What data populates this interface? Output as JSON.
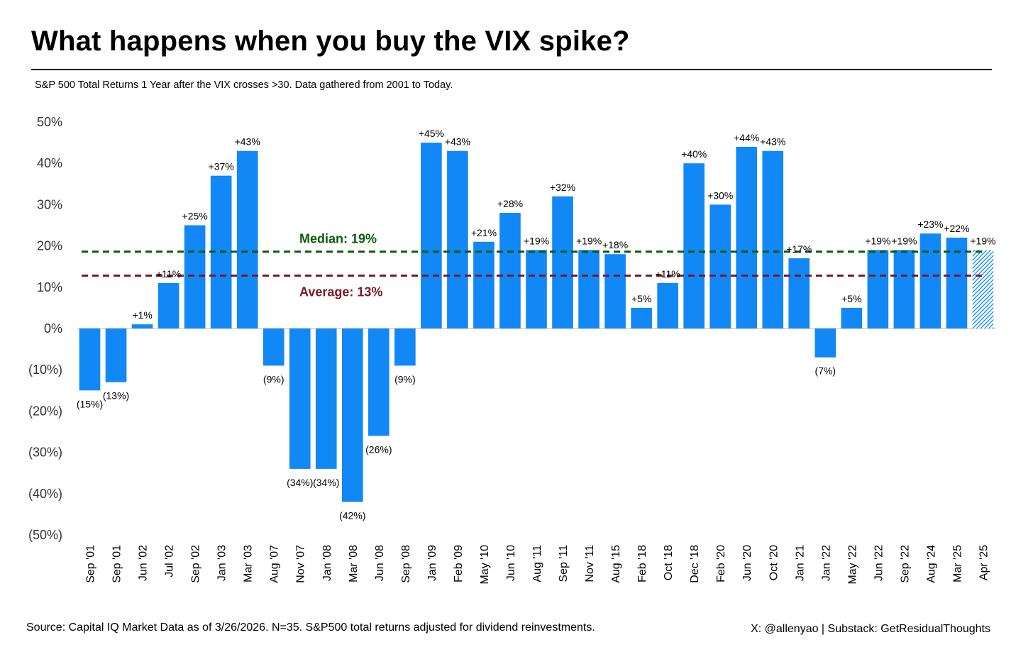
{
  "title": "What happens when you buy the VIX spike?",
  "subtitle": "S&P 500 Total Returns 1 Year after the VIX crosses >30. Data gathered from 2001 to Today.",
  "footer": {
    "source": "Source: Capital IQ Market Data as of 3/26/2026. N=35. S&P500 total returns adjusted for dividend reinvestments.",
    "credit": "X: @allenyao | Substack: GetResidualThoughts"
  },
  "colors": {
    "bar": "#1188F5",
    "median": "#0A5C0A",
    "average": "#7A1A2A"
  },
  "chart_data": {
    "type": "bar",
    "categories": [
      "Sep '01",
      "Sep '01",
      "Jun '02",
      "Jul '02",
      "Sep '02",
      "Jan '03",
      "Mar '03",
      "Aug '07",
      "Nov '07",
      "Jan '08",
      "Mar '08",
      "Jun '08",
      "Sep '08",
      "Jan '09",
      "Feb '09",
      "May '10",
      "Jun '10",
      "Aug '11",
      "Sep '11",
      "Nov '11",
      "Aug '15",
      "Feb '18",
      "Oct '18",
      "Dec '18",
      "Feb '20",
      "Jun '20",
      "Oct '20",
      "Jan '21",
      "Jan '22",
      "May '22",
      "Jun '22",
      "Sep '22",
      "Aug '24",
      "Mar '25",
      "Apr '25"
    ],
    "values": [
      -15,
      -13,
      1,
      11,
      25,
      37,
      43,
      -9,
      -34,
      -34,
      -42,
      -26,
      -9,
      45,
      43,
      21,
      28,
      19,
      32,
      19,
      18,
      5,
      11,
      40,
      30,
      44,
      43,
      17,
      -7,
      5,
      19,
      19,
      23,
      22,
      19
    ],
    "labels": [
      "(15%)",
      "(13%)",
      "+1%",
      "+11%",
      "+25%",
      "+37%",
      "+43%",
      "(9%)",
      "(34%)",
      "(34%)",
      "(42%)",
      "(26%)",
      "(9%)",
      "+45%",
      "+43%",
      "+21%",
      "+28%",
      "+19%",
      "+32%",
      "+19%",
      "+18%",
      "+5%",
      "+11%",
      "+40%",
      "+30%",
      "+44%",
      "+43%",
      "+17%",
      "(7%)",
      "+5%",
      "+19%",
      "+19%",
      "+23%",
      "+22%",
      "+19%"
    ],
    "hatched_last": true,
    "ylim": [
      -50,
      50
    ],
    "yticks": [
      50,
      40,
      30,
      20,
      10,
      0,
      -10,
      -20,
      -30,
      -40,
      -50
    ],
    "ytick_labels": [
      "50%",
      "40%",
      "30%",
      "20%",
      "10%",
      "0%",
      "(10%)",
      "(20%)",
      "(30%)",
      "(40%)",
      "(50%)"
    ],
    "reference_lines": [
      {
        "label": "Median: 19%",
        "value": 18.6,
        "color": "#0A5C0A",
        "style": "dashed"
      },
      {
        "label": "Average: 13%",
        "value": 12.8,
        "color": "#7A1A2A",
        "style": "dashed"
      }
    ],
    "grid": false,
    "legend": "none"
  }
}
